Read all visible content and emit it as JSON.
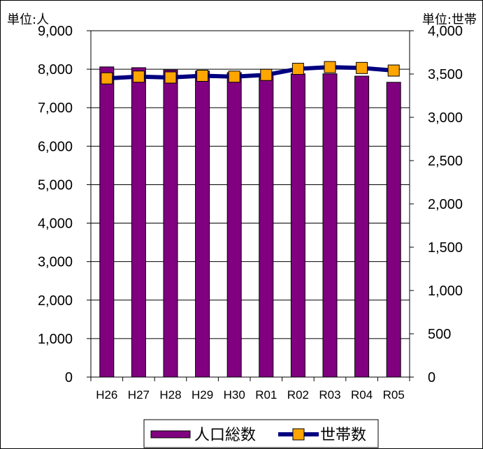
{
  "chart_data": {
    "type": "bar+line",
    "categories": [
      "H26",
      "H27",
      "H28",
      "H29",
      "H30",
      "R01",
      "R02",
      "R03",
      "R04",
      "R05"
    ],
    "series": [
      {
        "name": "人口総数",
        "type": "bar",
        "axis": "left",
        "color": "#800080",
        "values": [
          8060,
          8040,
          7980,
          7950,
          7910,
          7860,
          7880,
          7880,
          7820,
          7660
        ]
      },
      {
        "name": "世帯数",
        "type": "line",
        "axis": "right",
        "color": "#000080",
        "marker_color": "#FFA500",
        "values": [
          3450,
          3470,
          3460,
          3480,
          3470,
          3490,
          3560,
          3580,
          3570,
          3540
        ]
      }
    ],
    "y_left": {
      "label": "単位:人",
      "ylim": [
        0,
        9000
      ],
      "ticks": [
        0,
        1000,
        2000,
        3000,
        4000,
        5000,
        6000,
        7000,
        8000,
        9000
      ],
      "tick_labels": [
        "0",
        "1,000",
        "2,000",
        "3,000",
        "4,000",
        "5,000",
        "6,000",
        "7,000",
        "8,000",
        "9,000"
      ]
    },
    "y_right": {
      "label": "単位:世帯",
      "ylim": [
        0,
        4000
      ],
      "ticks": [
        0,
        500,
        1000,
        1500,
        2000,
        2500,
        3000,
        3500,
        4000
      ],
      "tick_labels": [
        "0",
        "500",
        "1,000",
        "1,500",
        "2,000",
        "2,500",
        "3,000",
        "3,500",
        "4,000"
      ]
    },
    "grid": true,
    "legend_position": "bottom-center"
  }
}
